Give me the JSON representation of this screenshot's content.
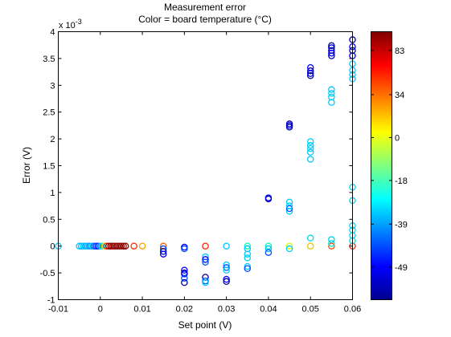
{
  "chart_data": {
    "type": "scatter",
    "title": "Measurement error",
    "subtitle": "Color = board temperature (°C)",
    "xlabel": "Set point (V)",
    "ylabel": "Error (V)",
    "y_multiplier": "x 10",
    "y_multiplier_exp": "-3",
    "xlim": [
      -0.01,
      0.06
    ],
    "ylim": [
      -1,
      4
    ],
    "x_ticks": [
      "-0.01",
      "0",
      "0.01",
      "0.02",
      "0.03",
      "0.04",
      "0.05",
      "0.06"
    ],
    "y_ticks": [
      "-1",
      "-0.5",
      "0",
      "0.5",
      "1",
      "1.5",
      "2",
      "2.5",
      "3",
      "3.5",
      "4"
    ],
    "grid": false,
    "marker": "open-circle",
    "colorbar": {
      "ticks": [
        "83",
        "34",
        "0",
        "-18",
        "-39",
        "-49"
      ],
      "colormap": "jet"
    },
    "points": [
      {
        "x": -0.01,
        "y": 0.0,
        "c": -39
      },
      {
        "x": -0.005,
        "y": 0.0,
        "c": -39
      },
      {
        "x": -0.0045,
        "y": 0.0,
        "c": -40
      },
      {
        "x": -0.004,
        "y": 0.0,
        "c": -39
      },
      {
        "x": -0.0035,
        "y": 0.0,
        "c": -41
      },
      {
        "x": -0.003,
        "y": 0.0,
        "c": -39
      },
      {
        "x": -0.0025,
        "y": 0.0,
        "c": -42
      },
      {
        "x": -0.002,
        "y": 0.0,
        "c": -39
      },
      {
        "x": -0.0015,
        "y": 0.0,
        "c": -44
      },
      {
        "x": -0.001,
        "y": 0.0,
        "c": -46
      },
      {
        "x": -0.0005,
        "y": 0.0,
        "c": -48
      },
      {
        "x": 0.0,
        "y": 0.0,
        "c": -40
      },
      {
        "x": 0.0005,
        "y": 0.0,
        "c": -30
      },
      {
        "x": 0.001,
        "y": 0.0,
        "c": 10
      },
      {
        "x": 0.0015,
        "y": 0.0,
        "c": 60
      },
      {
        "x": 0.002,
        "y": 0.0,
        "c": 83
      },
      {
        "x": 0.0025,
        "y": 0.0,
        "c": 83
      },
      {
        "x": 0.003,
        "y": 0.0,
        "c": 83
      },
      {
        "x": 0.0035,
        "y": 0.0,
        "c": 83
      },
      {
        "x": 0.004,
        "y": 0.0,
        "c": 83
      },
      {
        "x": 0.0045,
        "y": 0.0,
        "c": 83
      },
      {
        "x": 0.005,
        "y": 0.0,
        "c": 83
      },
      {
        "x": 0.0055,
        "y": 0.0,
        "c": 83
      },
      {
        "x": 0.006,
        "y": 0.0,
        "c": 83
      },
      {
        "x": 0.008,
        "y": 0.0,
        "c": 60
      },
      {
        "x": 0.01,
        "y": 0.0,
        "c": 34
      },
      {
        "x": 0.015,
        "y": 0.0,
        "c": 50
      },
      {
        "x": 0.015,
        "y": -0.05,
        "c": -45
      },
      {
        "x": 0.015,
        "y": -0.1,
        "c": -55
      },
      {
        "x": 0.015,
        "y": -0.15,
        "c": -49
      },
      {
        "x": 0.02,
        "y": -0.02,
        "c": -49
      },
      {
        "x": 0.02,
        "y": -0.05,
        "c": -45
      },
      {
        "x": 0.02,
        "y": -0.45,
        "c": -49
      },
      {
        "x": 0.02,
        "y": -0.5,
        "c": -55
      },
      {
        "x": 0.02,
        "y": -0.52,
        "c": -49
      },
      {
        "x": 0.02,
        "y": -0.6,
        "c": -45
      },
      {
        "x": 0.02,
        "y": -0.68,
        "c": -55
      },
      {
        "x": 0.025,
        "y": 0.0,
        "c": 60
      },
      {
        "x": 0.025,
        "y": -0.2,
        "c": -39
      },
      {
        "x": 0.025,
        "y": -0.25,
        "c": -49
      },
      {
        "x": 0.025,
        "y": -0.3,
        "c": -45
      },
      {
        "x": 0.025,
        "y": -0.58,
        "c": -55
      },
      {
        "x": 0.025,
        "y": -0.65,
        "c": -45
      },
      {
        "x": 0.025,
        "y": -0.68,
        "c": -39
      },
      {
        "x": 0.03,
        "y": 0.0,
        "c": -39
      },
      {
        "x": 0.03,
        "y": -0.35,
        "c": -39
      },
      {
        "x": 0.03,
        "y": -0.4,
        "c": -45
      },
      {
        "x": 0.03,
        "y": -0.45,
        "c": -39
      },
      {
        "x": 0.03,
        "y": -0.62,
        "c": -49
      },
      {
        "x": 0.03,
        "y": -0.66,
        "c": -55
      },
      {
        "x": 0.035,
        "y": 0.0,
        "c": -18
      },
      {
        "x": 0.035,
        "y": -0.05,
        "c": -39
      },
      {
        "x": 0.035,
        "y": -0.15,
        "c": -39
      },
      {
        "x": 0.035,
        "y": -0.22,
        "c": -35
      },
      {
        "x": 0.035,
        "y": -0.38,
        "c": -39
      },
      {
        "x": 0.035,
        "y": -0.42,
        "c": -45
      },
      {
        "x": 0.04,
        "y": 0.0,
        "c": -18
      },
      {
        "x": 0.04,
        "y": -0.05,
        "c": -39
      },
      {
        "x": 0.04,
        "y": -0.12,
        "c": -45
      },
      {
        "x": 0.04,
        "y": 0.88,
        "c": -55
      },
      {
        "x": 0.04,
        "y": 0.9,
        "c": -49
      },
      {
        "x": 0.045,
        "y": 0.0,
        "c": 0
      },
      {
        "x": 0.045,
        "y": -0.05,
        "c": -35
      },
      {
        "x": 0.045,
        "y": 0.65,
        "c": -39
      },
      {
        "x": 0.045,
        "y": 0.7,
        "c": -45
      },
      {
        "x": 0.045,
        "y": 0.75,
        "c": -39
      },
      {
        "x": 0.045,
        "y": 0.82,
        "c": -35
      },
      {
        "x": 0.045,
        "y": 2.22,
        "c": -55
      },
      {
        "x": 0.045,
        "y": 2.25,
        "c": -49
      },
      {
        "x": 0.045,
        "y": 2.28,
        "c": -55
      },
      {
        "x": 0.05,
        "y": 0.0,
        "c": 20
      },
      {
        "x": 0.05,
        "y": 0.15,
        "c": -30
      },
      {
        "x": 0.05,
        "y": 1.62,
        "c": -39
      },
      {
        "x": 0.05,
        "y": 1.75,
        "c": -39
      },
      {
        "x": 0.05,
        "y": 1.82,
        "c": -35
      },
      {
        "x": 0.05,
        "y": 1.88,
        "c": -39
      },
      {
        "x": 0.05,
        "y": 1.95,
        "c": -35
      },
      {
        "x": 0.05,
        "y": 3.18,
        "c": -55
      },
      {
        "x": 0.05,
        "y": 3.22,
        "c": -49
      },
      {
        "x": 0.05,
        "y": 3.27,
        "c": -55
      },
      {
        "x": 0.05,
        "y": 3.33,
        "c": -49
      },
      {
        "x": 0.055,
        "y": 0.0,
        "c": 50
      },
      {
        "x": 0.055,
        "y": 0.05,
        "c": -30
      },
      {
        "x": 0.055,
        "y": 0.12,
        "c": -35
      },
      {
        "x": 0.055,
        "y": 2.68,
        "c": -39
      },
      {
        "x": 0.055,
        "y": 2.78,
        "c": -39
      },
      {
        "x": 0.055,
        "y": 2.85,
        "c": -35
      },
      {
        "x": 0.055,
        "y": 2.92,
        "c": -39
      },
      {
        "x": 0.055,
        "y": 3.55,
        "c": -55
      },
      {
        "x": 0.055,
        "y": 3.6,
        "c": -49
      },
      {
        "x": 0.055,
        "y": 3.65,
        "c": -55
      },
      {
        "x": 0.055,
        "y": 3.7,
        "c": -49
      },
      {
        "x": 0.055,
        "y": 3.74,
        "c": -55
      },
      {
        "x": 0.06,
        "y": 0.0,
        "c": 60
      },
      {
        "x": 0.06,
        "y": 0.1,
        "c": -30
      },
      {
        "x": 0.06,
        "y": 0.2,
        "c": -35
      },
      {
        "x": 0.06,
        "y": 0.3,
        "c": -30
      },
      {
        "x": 0.06,
        "y": 0.38,
        "c": -35
      },
      {
        "x": 0.06,
        "y": 0.85,
        "c": -35
      },
      {
        "x": 0.06,
        "y": 1.1,
        "c": -35
      },
      {
        "x": 0.06,
        "y": 3.12,
        "c": -39
      },
      {
        "x": 0.06,
        "y": 3.2,
        "c": -35
      },
      {
        "x": 0.06,
        "y": 3.28,
        "c": -39
      },
      {
        "x": 0.06,
        "y": 3.4,
        "c": -35
      },
      {
        "x": 0.06,
        "y": 3.55,
        "c": -49
      },
      {
        "x": 0.06,
        "y": 3.65,
        "c": -55
      },
      {
        "x": 0.06,
        "y": 3.72,
        "c": -49
      },
      {
        "x": 0.06,
        "y": 3.85,
        "c": -55
      }
    ]
  }
}
